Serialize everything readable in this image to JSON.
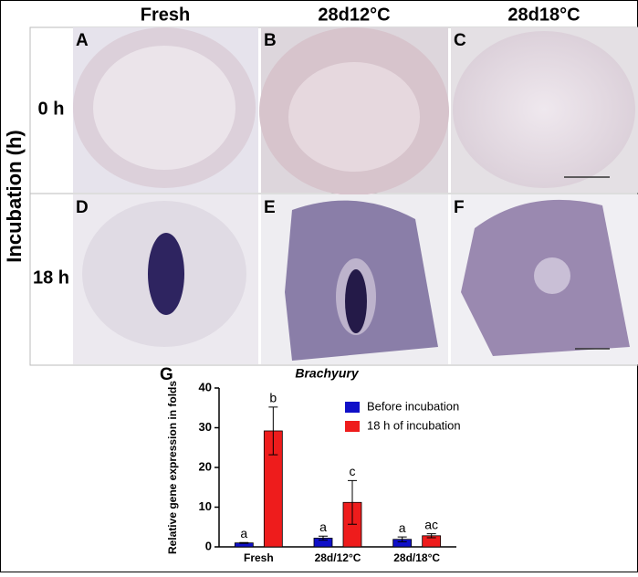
{
  "columns": [
    "Fresh",
    "28d12°C",
    "28d18°C"
  ],
  "row_axis_label": "Incubation (h)",
  "rows": [
    "0 h",
    "18 h"
  ],
  "panels": [
    "A",
    "B",
    "C",
    "D",
    "E",
    "F"
  ],
  "chart_data": {
    "type": "bar",
    "panel_label": "G",
    "title": "Brachyury",
    "y_label": "Relative gene expression in folds",
    "categories": [
      "Fresh",
      "28d/12°C",
      "28d/18°C"
    ],
    "series": [
      {
        "name": "Before incubation",
        "color": "#1010c8",
        "values": [
          1,
          2.2,
          1.9
        ],
        "errors": [
          0.1,
          0.5,
          0.6
        ],
        "letters": [
          "a",
          "a",
          "a"
        ]
      },
      {
        "name": "18 h of incubation",
        "color": "#ee1c1c",
        "values": [
          29.2,
          11.2,
          2.8
        ],
        "errors": [
          6,
          5.5,
          0.5
        ],
        "letters": [
          "b",
          "c",
          "ac"
        ]
      }
    ],
    "ylim": [
      0,
      40
    ],
    "yticks": [
      0,
      10,
      20,
      30,
      40
    ]
  }
}
